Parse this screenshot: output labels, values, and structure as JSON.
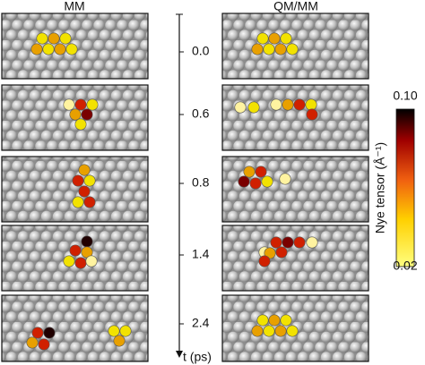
{
  "columns": [
    {
      "title": "MM"
    },
    {
      "title": "QM/MM"
    }
  ],
  "time_axis": {
    "label": "t (ps)",
    "ticks": [
      "0.0",
      "0.6",
      "0.8",
      "1.4",
      "2.4"
    ]
  },
  "colorbar": {
    "label": "Nye tensor (Å⁻¹)",
    "max": "0.10",
    "min": "0.02"
  }
}
